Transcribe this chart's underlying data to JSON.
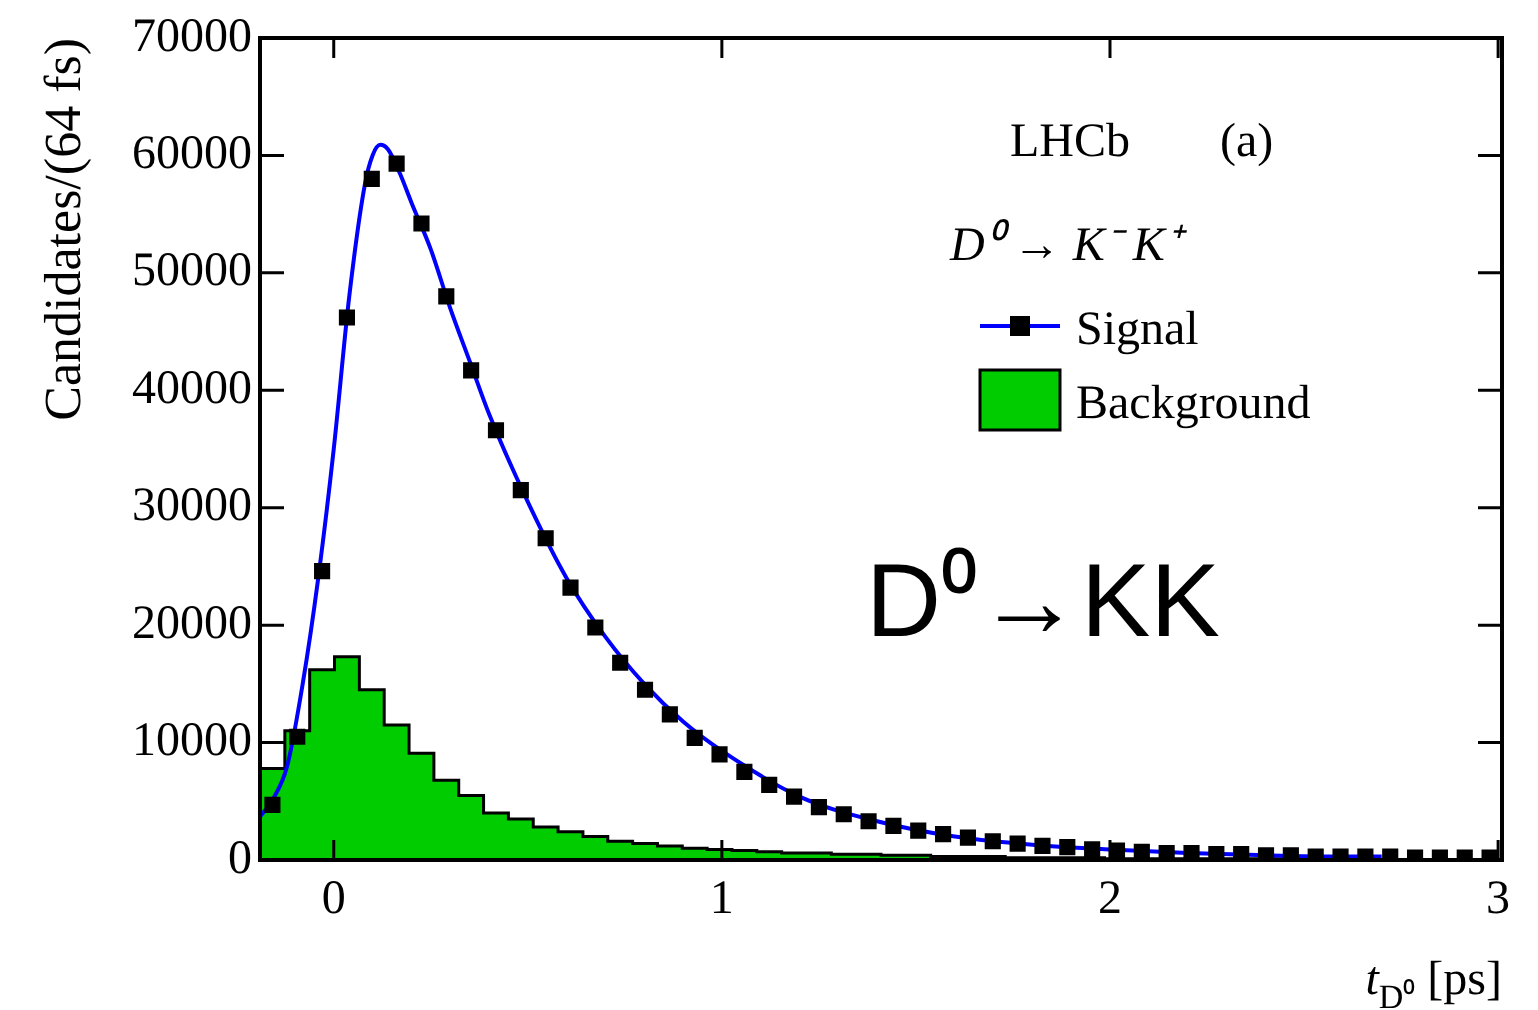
{
  "chart_data": {
    "type": "scatter",
    "xlabel": "t$_{D⁰}$ [ps]",
    "ylabel": "Candidates/(64 fs)",
    "legend_title": "D⁰ → K⁻ K⁺",
    "legend": "top right",
    "annotations": [
      "LHCb",
      "(a)",
      "D⁰→KK"
    ],
    "xlim": [
      -0.19,
      3.01
    ],
    "xticks": [
      0,
      1,
      2,
      3
    ],
    "ylim": [
      0,
      70000
    ],
    "yticks": [
      0,
      10000,
      20000,
      30000,
      40000,
      50000,
      60000,
      70000
    ],
    "series": [
      {
        "type": "histogram",
        "name": "Background",
        "color": "#00cc00",
        "bins": [
          -0.19,
          -0.126,
          -0.062,
          0.002,
          0.066,
          0.13,
          0.194,
          0.258,
          0.322,
          0.386,
          0.45,
          0.514,
          0.578,
          0.642,
          0.706,
          0.77,
          0.834,
          0.898,
          0.962,
          1.026,
          1.09,
          1.154,
          1.218,
          1.282,
          1.346,
          1.41,
          1.474,
          1.538,
          1.602,
          1.666,
          1.73,
          1.794,
          1.858,
          1.922,
          1.986,
          2.05,
          2.114,
          2.178,
          2.242,
          2.306,
          2.37,
          2.434,
          2.498,
          2.562,
          2.626,
          2.69,
          2.754,
          2.818,
          2.882,
          2.946,
          3.01
        ],
        "values": [
          7800,
          11000,
          16200,
          17300,
          14500,
          11500,
          9100,
          6800,
          5500,
          4000,
          3500,
          2800,
          2400,
          2000,
          1600,
          1400,
          1200,
          1000,
          900,
          800,
          700,
          600,
          600,
          500,
          500,
          400,
          400,
          300,
          300,
          300,
          200,
          200,
          200,
          200,
          100,
          100,
          100,
          100,
          100,
          100,
          100,
          100,
          100,
          100,
          0,
          0,
          0,
          0,
          0,
          0
        ]
      },
      {
        "type": "scatter",
        "name": "Signal",
        "color": "#000000",
        "marker": "square",
        "x": [
          -0.158,
          -0.094,
          -0.03,
          0.034,
          0.098,
          0.162,
          0.226,
          0.29,
          0.354,
          0.418,
          0.482,
          0.546,
          0.61,
          0.674,
          0.738,
          0.802,
          0.866,
          0.93,
          0.994,
          1.058,
          1.122,
          1.186,
          1.25,
          1.314,
          1.378,
          1.442,
          1.506,
          1.57,
          1.634,
          1.698,
          1.762,
          1.826,
          1.89,
          1.954,
          2.018,
          2.082,
          2.146,
          2.21,
          2.274,
          2.338,
          2.402,
          2.466,
          2.53,
          2.594,
          2.658,
          2.722,
          2.786,
          2.85,
          2.914,
          2.978
        ],
        "values": [
          4700,
          10500,
          24600,
          46200,
          58000,
          59300,
          54200,
          48000,
          41700,
          36600,
          31500,
          27400,
          23200,
          19800,
          16800,
          14500,
          12400,
          10400,
          9000,
          7500,
          6400,
          5400,
          4500,
          3900,
          3300,
          2900,
          2500,
          2200,
          1900,
          1600,
          1400,
          1200,
          1100,
          900,
          800,
          700,
          600,
          600,
          500,
          500,
          400,
          400,
          300,
          300,
          300,
          300,
          200,
          200,
          200,
          200
        ]
      },
      {
        "type": "line",
        "color": "#0000ff",
        "marker": "none",
        "x": [
          -0.19,
          -0.16,
          -0.12,
          -0.08,
          -0.04,
          0,
          0.04,
          0.08,
          0.1,
          0.12,
          0.14,
          0.17,
          0.2,
          0.25,
          0.3,
          0.35,
          0.4,
          0.5,
          0.6,
          0.7,
          0.8,
          0.9,
          1.0,
          1.2,
          1.4,
          1.6,
          1.8,
          2.0,
          2.2,
          2.4,
          2.6,
          2.7
        ],
        "values": [
          3700,
          5000,
          8000,
          15000,
          24000,
          35000,
          48000,
          57500,
          60000,
          60900,
          60500,
          58500,
          56000,
          52000,
          47000,
          42500,
          38000,
          30500,
          24000,
          19000,
          15000,
          11800,
          9300,
          5400,
          3300,
          2000,
          1300,
          900,
          600,
          400,
          300,
          300
        ]
      }
    ]
  }
}
